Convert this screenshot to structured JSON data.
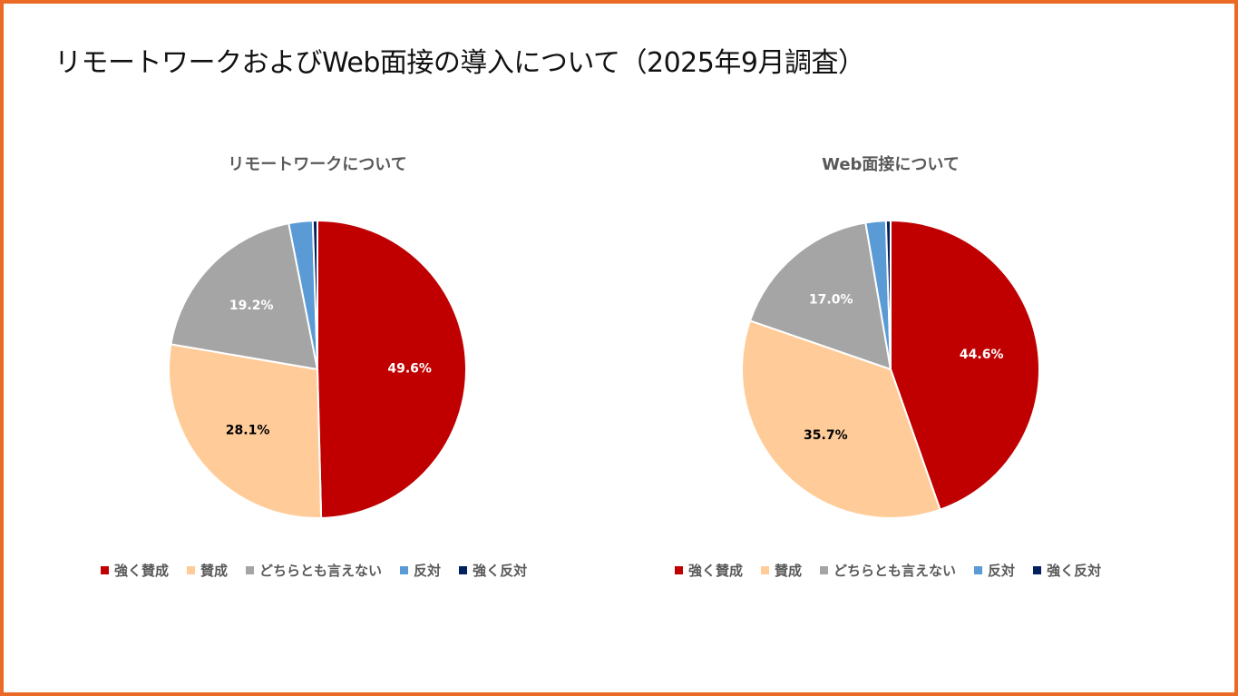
{
  "page_title": "リモートワークおよびWeb面接の導入について（2025年9月調査）",
  "colors": {
    "frame": "#ea6a26",
    "categories": [
      "#c00000",
      "#ffcc99",
      "#a5a5a5",
      "#5b9bd5",
      "#002060"
    ]
  },
  "chart_data": [
    {
      "type": "pie",
      "title": "リモートワークについて",
      "categories": [
        "強く賛成",
        "賛成",
        "どちらとも言えない",
        "反対",
        "強く反対"
      ],
      "values": [
        49.6,
        28.1,
        19.2,
        2.6,
        0.5
      ],
      "data_labels": [
        "49.6%",
        "28.1%",
        "19.2%",
        "",
        ""
      ],
      "legend_position": "bottom"
    },
    {
      "type": "pie",
      "title": "Web面接について",
      "categories": [
        "強く賛成",
        "賛成",
        "どちらとも言えない",
        "反対",
        "強く反対"
      ],
      "values": [
        44.6,
        35.7,
        17.0,
        2.2,
        0.5
      ],
      "data_labels": [
        "44.6%",
        "35.7%",
        "17.0%",
        "",
        ""
      ],
      "legend_position": "bottom"
    }
  ]
}
